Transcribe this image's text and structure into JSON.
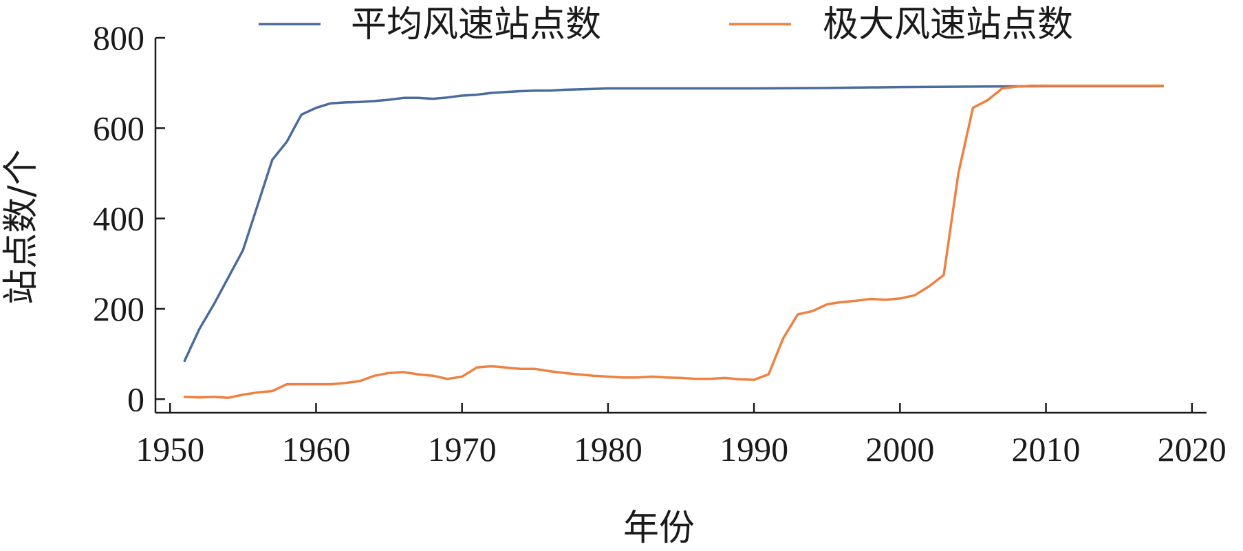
{
  "chart_data": {
    "type": "line",
    "xlabel": "年份",
    "ylabel": "站点数/个",
    "xlim": [
      1949,
      2021
    ],
    "ylim": [
      -30,
      800
    ],
    "xticks": [
      1950,
      1960,
      1970,
      1980,
      1990,
      2000,
      2010,
      2020
    ],
    "yticks": [
      0,
      200,
      400,
      600,
      800
    ],
    "legend_position": "top",
    "grid": false,
    "series": [
      {
        "name": "平均风速站点数",
        "color": "#4a6b9c",
        "x": [
          1951,
          1952,
          1953,
          1954,
          1955,
          1956,
          1957,
          1958,
          1959,
          1960,
          1961,
          1962,
          1963,
          1964,
          1965,
          1966,
          1967,
          1968,
          1969,
          1970,
          1971,
          1972,
          1973,
          1974,
          1975,
          1976,
          1977,
          1978,
          1979,
          1980,
          1985,
          1990,
          1995,
          2000,
          2005,
          2010,
          2015,
          2018
        ],
        "values": [
          85,
          155,
          210,
          270,
          330,
          430,
          530,
          570,
          630,
          645,
          655,
          657,
          658,
          660,
          663,
          667,
          667,
          665,
          668,
          672,
          674,
          678,
          680,
          682,
          683,
          683,
          685,
          686,
          687,
          688,
          688,
          688,
          689,
          691,
          692,
          693,
          693,
          693
        ]
      },
      {
        "name": "极大风速站点数",
        "color": "#f08040",
        "x": [
          1951,
          1952,
          1953,
          1954,
          1955,
          1956,
          1957,
          1958,
          1959,
          1960,
          1961,
          1962,
          1963,
          1964,
          1965,
          1966,
          1967,
          1968,
          1969,
          1970,
          1971,
          1972,
          1973,
          1974,
          1975,
          1976,
          1977,
          1978,
          1979,
          1980,
          1981,
          1982,
          1983,
          1984,
          1985,
          1986,
          1987,
          1988,
          1989,
          1990,
          1991,
          1992,
          1993,
          1994,
          1995,
          1996,
          1997,
          1998,
          1999,
          2000,
          2001,
          2002,
          2003,
          2004,
          2005,
          2006,
          2007,
          2008,
          2009,
          2010,
          2015,
          2018
        ],
        "values": [
          5,
          4,
          5,
          3,
          10,
          15,
          18,
          33,
          33,
          33,
          33,
          36,
          40,
          52,
          58,
          60,
          55,
          52,
          45,
          50,
          70,
          73,
          70,
          67,
          67,
          62,
          58,
          55,
          52,
          50,
          48,
          48,
          50,
          48,
          47,
          45,
          45,
          47,
          44,
          43,
          55,
          135,
          188,
          195,
          210,
          215,
          218,
          222,
          220,
          223,
          230,
          250,
          275,
          500,
          645,
          662,
          688,
          692,
          694,
          694,
          694,
          694
        ]
      }
    ]
  }
}
